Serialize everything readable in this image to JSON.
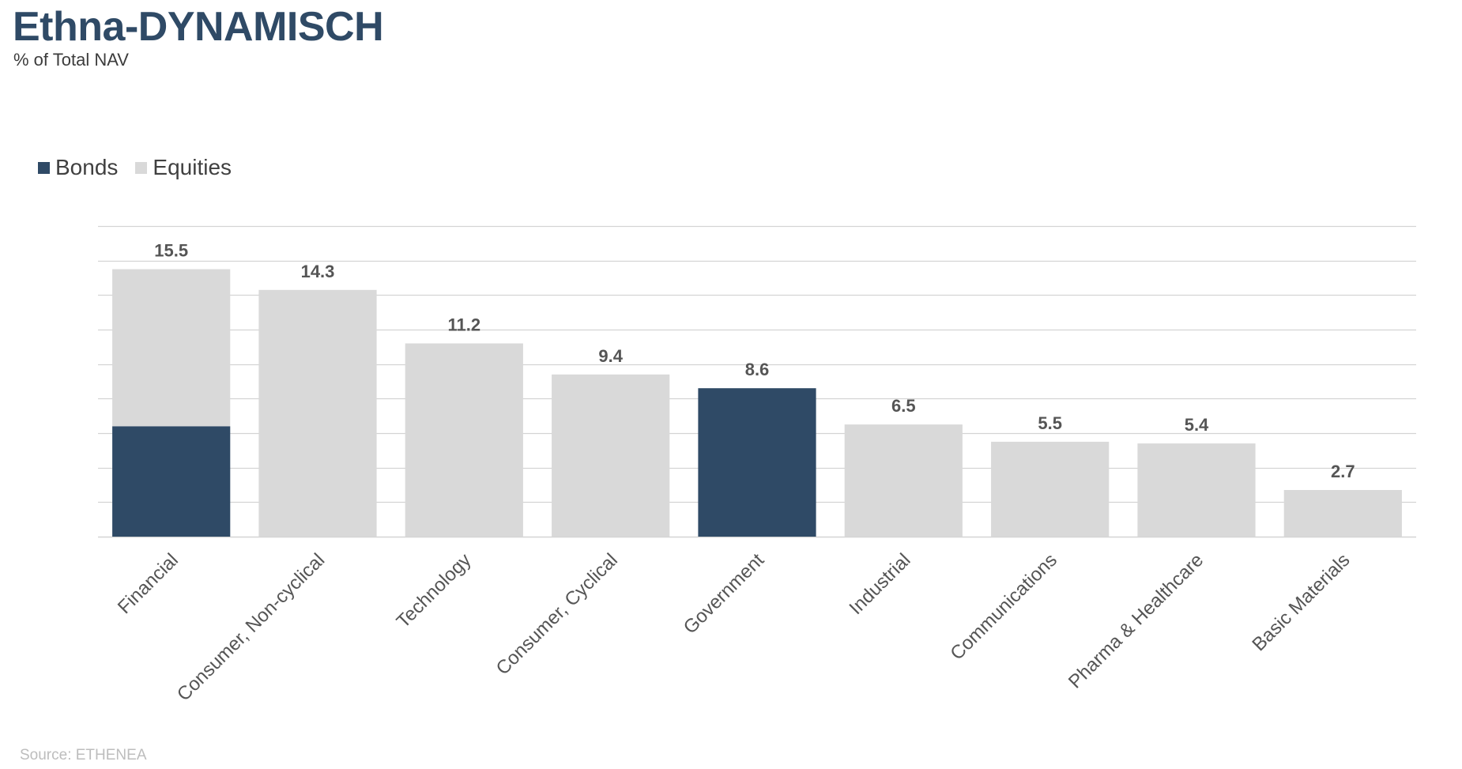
{
  "header": {
    "title": "Ethna-DYNAMISCH",
    "subtitle": "% of Total NAV"
  },
  "footer": {
    "source": "Source: ETHENEA"
  },
  "colors": {
    "bonds": "#2f4a66",
    "equities": "#d9d9d9",
    "grid": "#d4d4d4",
    "label": "#555555"
  },
  "chart_data": {
    "type": "bar",
    "stacked": true,
    "categories": [
      "Financial",
      "Consumer, Non-cyclical",
      "Technology",
      "Consumer, Cyclical",
      "Government",
      "Industrial",
      "Communications",
      "Pharma & Healthcare",
      "Basic Materials"
    ],
    "series": [
      {
        "name": "Bonds",
        "values": [
          6.4,
          0,
          0,
          0,
          8.6,
          0,
          0,
          0,
          0
        ]
      },
      {
        "name": "Equities",
        "values": [
          9.1,
          14.3,
          11.2,
          9.4,
          0,
          6.5,
          5.5,
          5.4,
          2.7
        ]
      }
    ],
    "totals": [
      "15.5",
      "14.3",
      "11.2",
      "9.4",
      "8.6",
      "6.5",
      "5.5",
      "5.4",
      "2.7"
    ],
    "ylim": [
      0,
      18
    ],
    "grid": true,
    "legend_position": "top-left"
  }
}
